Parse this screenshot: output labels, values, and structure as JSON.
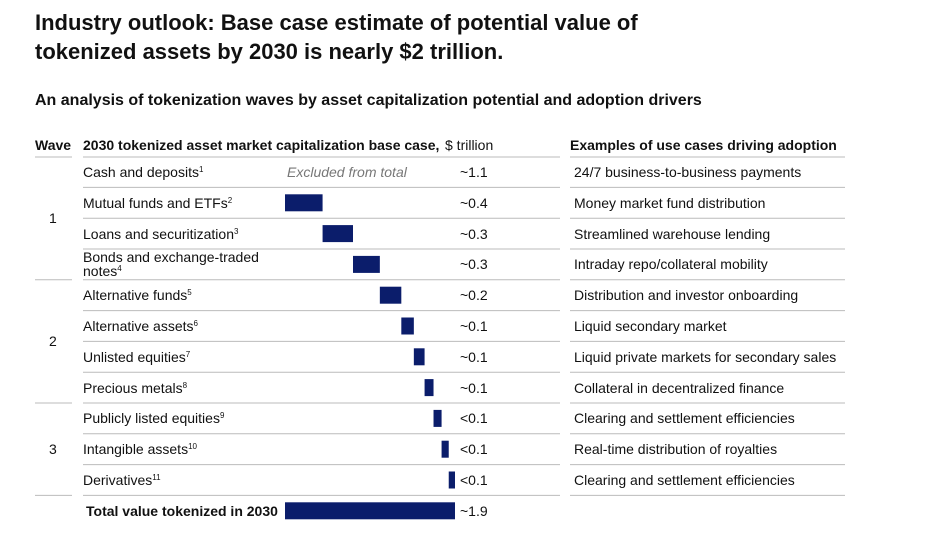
{
  "title": "Industry outlook: Base case estimate of potential value of tokenized assets by 2030 is nearly $2 trillion.",
  "subtitle": "An analysis of tokenization waves by asset capitalization potential and adoption drivers",
  "chart_data": {
    "type": "waterfall",
    "headers": {
      "wave": "Wave",
      "market": "2030 tokenized asset market capitalization base case,",
      "unit": "$ trillion",
      "use_cases": "Examples of use cases driving adoption"
    },
    "color": "#0b1d6b",
    "waves": [
      {
        "label": "1",
        "rows": [
          {
            "category": "Cash and deposits",
            "footnote": "1",
            "value": 1.1,
            "value_label": "~1.1",
            "note": "Excluded from total",
            "use_case": "24/7 business-to-business payments"
          },
          {
            "category": "Mutual funds and ETFs",
            "footnote": "2",
            "value": 0.42,
            "value_label": "~0.4",
            "use_case": "Money market fund distribution"
          },
          {
            "category": "Loans and securitization",
            "footnote": "3",
            "value": 0.34,
            "value_label": "~0.3",
            "use_case": "Streamlined warehouse lending"
          },
          {
            "category": "Bonds and exchange-traded notes",
            "footnote": "4",
            "value": 0.3,
            "value_label": "~0.3",
            "use_case": "Intraday repo/collateral mobility"
          }
        ]
      },
      {
        "label": "2",
        "rows": [
          {
            "category": "Alternative funds",
            "footnote": "5",
            "value": 0.24,
            "value_label": "~0.2",
            "use_case": "Distribution and investor onboarding"
          },
          {
            "category": "Alternative assets",
            "footnote": "6",
            "value": 0.14,
            "value_label": "~0.1",
            "use_case": "Liquid secondary market"
          },
          {
            "category": "Unlisted equities",
            "footnote": "7",
            "value": 0.12,
            "value_label": "~0.1",
            "use_case": "Liquid private markets for secondary sales"
          },
          {
            "category": "Precious metals",
            "footnote": "8",
            "value": 0.1,
            "value_label": "~0.1",
            "use_case": "Collateral in decentralized finance"
          }
        ]
      },
      {
        "label": "3",
        "rows": [
          {
            "category": "Publicly listed equities",
            "footnote": "9",
            "value": 0.09,
            "value_label": "<0.1",
            "use_case": "Clearing and settlement efficiencies"
          },
          {
            "category": "Intangible assets",
            "footnote": "10",
            "value": 0.08,
            "value_label": "<0.1",
            "use_case": "Real-time distribution of royalties"
          },
          {
            "category": "Derivatives",
            "footnote": "11",
            "value": 0.07,
            "value_label": "<0.1",
            "use_case": "Clearing and settlement efficiencies"
          }
        ]
      }
    ],
    "total": {
      "label": "Total value tokenized in 2030",
      "value": 1.9,
      "value_label": "~1.9"
    }
  }
}
